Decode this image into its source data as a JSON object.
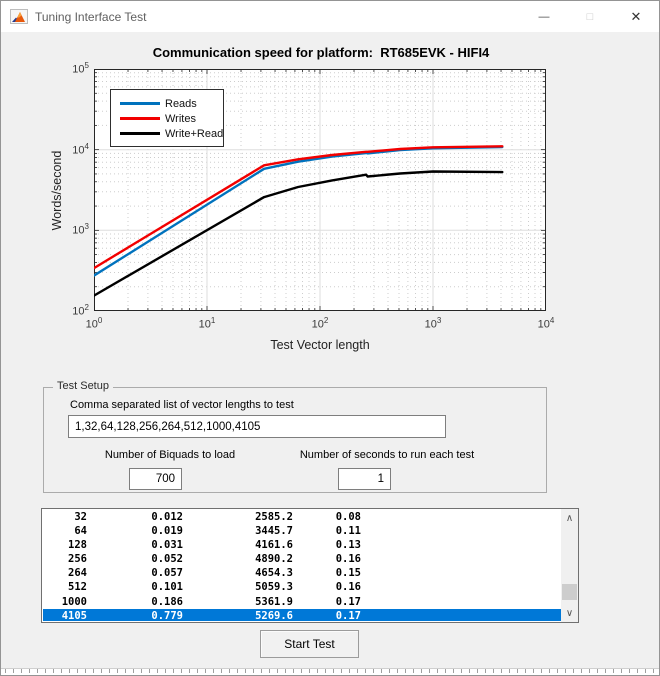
{
  "window": {
    "title": "Tuning Interface Test",
    "controls": {
      "minimize": "—",
      "maximize": "□",
      "close": "✕"
    }
  },
  "chart_data": {
    "type": "line",
    "title": "Communication speed for platform:  RT685EVK - HIFI4",
    "xlabel": "Test Vector length",
    "ylabel": "Words/second",
    "xscale": "log",
    "yscale": "log",
    "xlim": [
      1,
      10000
    ],
    "ylim": [
      100,
      100000
    ],
    "x_ticks": [
      1,
      10,
      100,
      1000,
      10000
    ],
    "y_ticks": [
      100,
      1000,
      10000,
      100000
    ],
    "grid": true,
    "legend_position": "top-left",
    "x": [
      1,
      32,
      64,
      128,
      256,
      264,
      512,
      1000,
      4105
    ],
    "series": [
      {
        "name": "Reads",
        "color": "#0072BD",
        "values": [
          275,
          5800,
          7100,
          8200,
          9100,
          9000,
          9900,
          10400,
          10800
        ]
      },
      {
        "name": "Writes",
        "color": "#F20000",
        "values": [
          340,
          6400,
          7600,
          8600,
          9400,
          9400,
          10200,
          10700,
          11000
        ]
      },
      {
        "name": "Write+Read",
        "color": "#000000",
        "values": [
          155,
          2585.2,
          3445.7,
          4161.6,
          4890.2,
          4654.3,
          5059.3,
          5361.9,
          5269.6
        ]
      }
    ]
  },
  "test_setup": {
    "group_label": "Test Setup",
    "vector_label": "Comma separated list of vector lengths to test",
    "vector_value": "1,32,64,128,256,264,512,1000,4105",
    "biquads_label": "Number of Biquads to load",
    "biquads_value": "700",
    "seconds_label": "Number of seconds to run each test",
    "seconds_value": "1"
  },
  "results": {
    "rows": [
      [
        "32",
        "0.012",
        "2585.2",
        "0.08"
      ],
      [
        "64",
        "0.019",
        "3445.7",
        "0.11"
      ],
      [
        "128",
        "0.031",
        "4161.6",
        "0.13"
      ],
      [
        "256",
        "0.052",
        "4890.2",
        "0.16"
      ],
      [
        "264",
        "0.057",
        "4654.3",
        "0.15"
      ],
      [
        "512",
        "0.101",
        "5059.3",
        "0.16"
      ],
      [
        "1000",
        "0.186",
        "5361.9",
        "0.17"
      ],
      [
        "4105",
        "0.779",
        "5269.6",
        "0.17"
      ]
    ],
    "selected_index": 7,
    "selection_color": "#0078D7",
    "scrollbar": {
      "up": "∧",
      "down": "∨"
    }
  },
  "start_button": {
    "label": "Start Test"
  }
}
